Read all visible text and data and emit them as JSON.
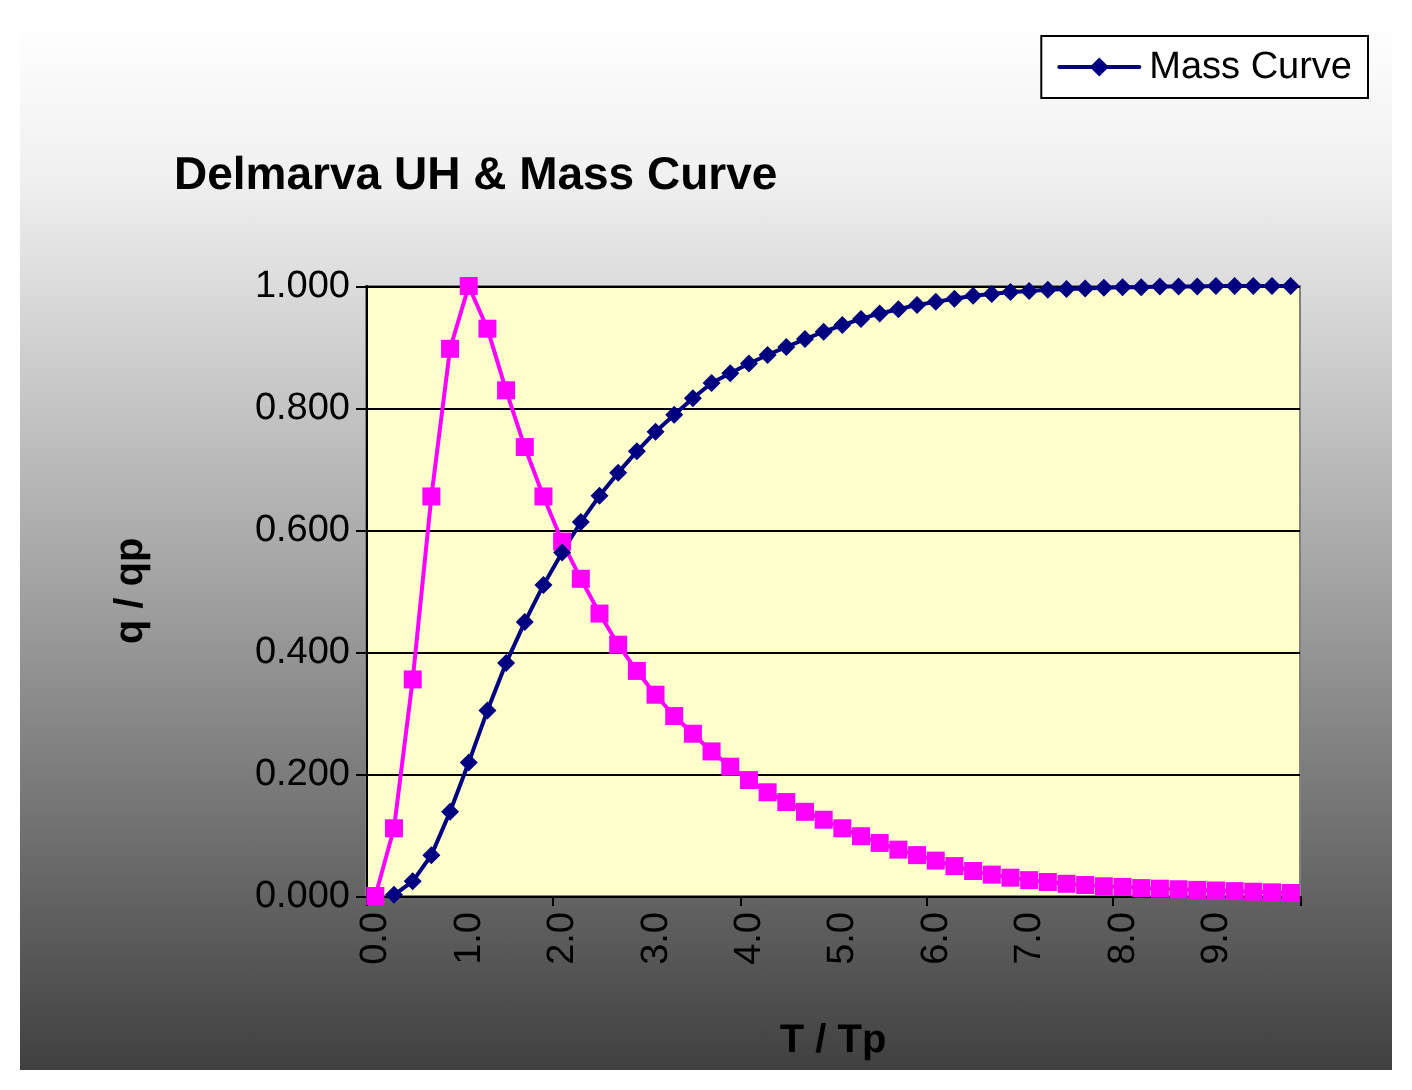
{
  "chart_data": {
    "type": "line",
    "title": "Delmarva UH & Mass Curve",
    "xlabel": "T / Tp",
    "ylabel": "q / qp",
    "categories": [
      "0.0",
      null,
      null,
      null,
      null,
      "1.0",
      null,
      null,
      null,
      null,
      "2.0",
      null,
      null,
      null,
      null,
      "3.0",
      null,
      null,
      null,
      null,
      "4.0",
      null,
      null,
      null,
      null,
      "5.0",
      null,
      null,
      null,
      null,
      "6.0",
      null,
      null,
      null,
      null,
      "7.0",
      null,
      null,
      null,
      null,
      "8.0",
      null,
      null,
      null,
      null,
      "9.0",
      null,
      null,
      null,
      null
    ],
    "series": [
      {
        "color": "#ff00ff",
        "marker": "square",
        "values": [
          0,
          0.111,
          0.355,
          0.655,
          0.897,
          1.0,
          0.93,
          0.829,
          0.736,
          0.655,
          0.581,
          0.52,
          0.463,
          0.412,
          0.369,
          0.33,
          0.295,
          0.266,
          0.237,
          0.212,
          0.19,
          0.17,
          0.154,
          0.138,
          0.125,
          0.111,
          0.098,
          0.087,
          0.076,
          0.067,
          0.058,
          0.049,
          0.041,
          0.035,
          0.03,
          0.026,
          0.023,
          0.02,
          0.018,
          0.016,
          0.015,
          0.013,
          0.012,
          0.011,
          0.01,
          0.009,
          0.008,
          0.007,
          0.006,
          0.005
        ]
      },
      {
        "name": "Mass Curve",
        "color": "#000080",
        "marker": "diamond",
        "values": [
          null,
          0.002,
          0.024,
          0.067,
          0.138,
          0.219,
          0.304,
          0.382,
          0.449,
          0.51,
          0.563,
          0.613,
          0.656,
          0.694,
          0.729,
          0.761,
          0.789,
          0.816,
          0.841,
          0.857,
          0.873,
          0.887,
          0.9,
          0.913,
          0.925,
          0.936,
          0.946,
          0.955,
          0.962,
          0.969,
          0.974,
          0.979,
          0.984,
          0.987,
          0.99,
          0.992,
          0.994,
          0.995,
          0.996,
          0.997,
          0.998,
          0.998,
          0.999,
          0.999,
          0.999,
          1.0,
          1.0,
          1.0,
          1.0,
          1.0
        ]
      }
    ],
    "ylim": [
      0,
      1
    ],
    "yticks": [
      {
        "value": 0,
        "label": "0.000"
      },
      {
        "value": 0.2,
        "label": "0.200"
      },
      {
        "value": 0.4,
        "label": "0.400"
      },
      {
        "value": 0.6,
        "label": "0.600"
      },
      {
        "value": 0.8,
        "label": "0.800"
      },
      {
        "value": 1,
        "label": "1.000"
      }
    ],
    "grid": "y",
    "legend": "top right",
    "line_style": "solid"
  }
}
